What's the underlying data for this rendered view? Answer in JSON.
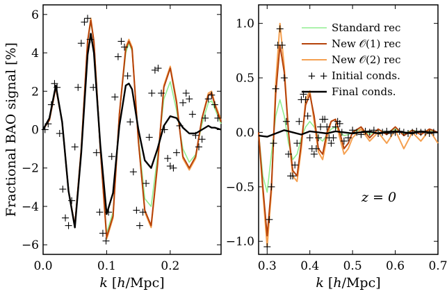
{
  "chart_data": [
    {
      "type": "line",
      "ylabel": "Fractional BAO signal [%]",
      "xlabel": "k [h/Mpc]",
      "xlim": [
        0.0,
        0.28
      ],
      "ylim": [
        -6.5,
        6.5
      ],
      "xticks": [
        0.0,
        0.1,
        0.2
      ],
      "xtick_labels": [
        "0.0",
        "0.1",
        "0.2"
      ],
      "yticks": [
        -6,
        -4,
        -2,
        0,
        2,
        4,
        6
      ],
      "ytick_labels": [
        "−6",
        "−4",
        "−2",
        "0",
        "2",
        "4",
        "6"
      ],
      "series": [
        {
          "key": "standard",
          "name": "Standard rec",
          "color": "#90ee90",
          "x": [
            0.0,
            0.01,
            0.02,
            0.03,
            0.04,
            0.05,
            0.06,
            0.07,
            0.075,
            0.08,
            0.09,
            0.1,
            0.11,
            0.12,
            0.13,
            0.135,
            0.14,
            0.15,
            0.16,
            0.17,
            0.18,
            0.19,
            0.2,
            0.21,
            0.22,
            0.23,
            0.24,
            0.25,
            0.26,
            0.265,
            0.27,
            0.28
          ],
          "y": [
            0.0,
            0.5,
            2.2,
            0.4,
            -3.2,
            -5.0,
            -1.0,
            4.6,
            5.6,
            4.6,
            -1.0,
            -5.4,
            -4.3,
            0.8,
            4.0,
            4.5,
            4.1,
            -0.4,
            -3.6,
            -4.0,
            -1.4,
            1.6,
            2.5,
            1.0,
            -1.0,
            -1.7,
            -1.3,
            0.3,
            1.4,
            1.5,
            1.1,
            0.3
          ]
        },
        {
          "key": "new1",
          "name": "New O(1) rec",
          "color": "#b5420a",
          "x": [
            0.0,
            0.01,
            0.02,
            0.03,
            0.04,
            0.05,
            0.06,
            0.07,
            0.075,
            0.08,
            0.09,
            0.1,
            0.11,
            0.12,
            0.13,
            0.135,
            0.14,
            0.15,
            0.16,
            0.17,
            0.18,
            0.19,
            0.2,
            0.21,
            0.22,
            0.23,
            0.24,
            0.25,
            0.26,
            0.265,
            0.27,
            0.28
          ],
          "y": [
            0.0,
            0.5,
            2.2,
            0.4,
            -3.2,
            -5.0,
            -1.0,
            4.6,
            5.7,
            4.6,
            -1.0,
            -5.6,
            -4.5,
            0.8,
            4.2,
            4.6,
            4.2,
            -0.6,
            -4.2,
            -5.0,
            -1.8,
            2.2,
            3.2,
            1.4,
            -1.4,
            -2.0,
            -1.4,
            0.6,
            1.8,
            1.9,
            1.3,
            0.4
          ]
        },
        {
          "key": "new2",
          "name": "New O(2) rec",
          "color": "#f5a050",
          "x": [
            0.0,
            0.01,
            0.02,
            0.03,
            0.04,
            0.05,
            0.06,
            0.07,
            0.075,
            0.08,
            0.09,
            0.1,
            0.11,
            0.12,
            0.13,
            0.135,
            0.14,
            0.15,
            0.16,
            0.17,
            0.18,
            0.19,
            0.2,
            0.21,
            0.22,
            0.23,
            0.24,
            0.25,
            0.26,
            0.265,
            0.27,
            0.28
          ],
          "y": [
            0.0,
            0.5,
            2.2,
            0.4,
            -3.2,
            -5.0,
            -1.0,
            4.6,
            5.8,
            4.6,
            -1.0,
            -5.7,
            -4.6,
            0.8,
            4.3,
            4.7,
            4.3,
            -0.6,
            -4.3,
            -5.1,
            -1.9,
            2.3,
            3.3,
            1.5,
            -1.5,
            -2.1,
            -1.5,
            0.6,
            1.9,
            2.0,
            1.4,
            0.5
          ]
        },
        {
          "key": "initial",
          "name": "Initial conds.",
          "color": "#000000",
          "marker": "+",
          "x": [
            0.003,
            0.008,
            0.013,
            0.018,
            0.022,
            0.026,
            0.031,
            0.035,
            0.04,
            0.045,
            0.05,
            0.055,
            0.06,
            0.065,
            0.07,
            0.074,
            0.079,
            0.084,
            0.089,
            0.094,
            0.099,
            0.103,
            0.108,
            0.113,
            0.118,
            0.123,
            0.128,
            0.133,
            0.137,
            0.142,
            0.147,
            0.152,
            0.157,
            0.162,
            0.167,
            0.171,
            0.176,
            0.181,
            0.186,
            0.191,
            0.196,
            0.2,
            0.205,
            0.21,
            0.215,
            0.22,
            0.225,
            0.23,
            0.235,
            0.24,
            0.245,
            0.25,
            0.255,
            0.26,
            0.265,
            0.27,
            0.275
          ],
          "y": [
            0.0,
            0.3,
            1.3,
            2.4,
            2.2,
            -0.2,
            -3.1,
            -4.6,
            -5.0,
            -3.7,
            -0.9,
            2.2,
            4.5,
            5.6,
            5.8,
            4.7,
            2.2,
            -1.2,
            -4.3,
            -5.4,
            -5.8,
            -4.3,
            -1.4,
            1.7,
            3.8,
            4.6,
            4.3,
            2.8,
            0.4,
            -2.2,
            -4.2,
            -5.0,
            -4.3,
            -2.8,
            -0.4,
            1.9,
            3.1,
            3.2,
            1.9,
            0.0,
            -1.5,
            -1.9,
            -2.0,
            -1.2,
            0.2,
            1.4,
            1.9,
            1.6,
            0.8,
            -0.3,
            -0.9,
            -0.5,
            0.6,
            1.6,
            1.8,
            1.3,
            0.6
          ]
        },
        {
          "key": "final",
          "name": "Final conds.",
          "color": "#000000",
          "x": [
            0.0,
            0.01,
            0.02,
            0.03,
            0.04,
            0.05,
            0.06,
            0.07,
            0.075,
            0.08,
            0.09,
            0.1,
            0.11,
            0.12,
            0.13,
            0.135,
            0.14,
            0.15,
            0.16,
            0.17,
            0.18,
            0.19,
            0.2,
            0.21,
            0.22,
            0.23,
            0.24,
            0.25,
            0.26,
            0.265,
            0.27,
            0.28
          ],
          "y": [
            0.0,
            0.6,
            2.3,
            0.4,
            -3.2,
            -5.1,
            -1.2,
            3.9,
            5.0,
            4.0,
            -0.8,
            -4.4,
            -3.3,
            0.2,
            2.3,
            2.4,
            2.1,
            0.0,
            -1.6,
            -2.0,
            -1.0,
            0.2,
            0.7,
            0.6,
            0.1,
            -0.2,
            -0.2,
            0.0,
            0.2,
            0.1,
            0.1,
            0.0
          ]
        }
      ]
    },
    {
      "type": "line",
      "xlabel": "k [h/Mpc]",
      "xlim": [
        0.28,
        0.7
      ],
      "ylim": [
        -1.12,
        1.17
      ],
      "xticks": [
        0.3,
        0.4,
        0.5,
        0.6,
        0.7
      ],
      "xtick_labels": [
        "0.3",
        "0.4",
        "0.5",
        "0.6",
        "0.7"
      ],
      "yticks": [
        -1.0,
        -0.5,
        0.0,
        0.5,
        1.0
      ],
      "ytick_labels": [
        "−1.0",
        "−0.5",
        "0.0",
        "0.5",
        "1.0"
      ],
      "annotation": "z = 0",
      "series": [
        {
          "key": "standard",
          "name": "Standard rec",
          "color": "#90ee90",
          "x": [
            0.28,
            0.29,
            0.3,
            0.31,
            0.32,
            0.33,
            0.34,
            0.35,
            0.36,
            0.37,
            0.38,
            0.39,
            0.4,
            0.41,
            0.42,
            0.43,
            0.44,
            0.45,
            0.46,
            0.47,
            0.48,
            0.49,
            0.5,
            0.52,
            0.54,
            0.56,
            0.58,
            0.6,
            0.62,
            0.64,
            0.66,
            0.68,
            0.7
          ],
          "y": [
            0.0,
            -0.4,
            -0.55,
            -0.2,
            0.15,
            0.3,
            0.15,
            -0.1,
            -0.25,
            -0.2,
            -0.05,
            0.05,
            0.1,
            0.05,
            -0.05,
            -0.08,
            -0.02,
            0.03,
            0.05,
            0.0,
            -0.03,
            -0.02,
            0.0,
            0.03,
            -0.02,
            0.02,
            0.0,
            0.03,
            -0.01,
            0.02,
            0.0,
            0.02,
            0.0
          ]
        },
        {
          "key": "new1",
          "name": "New O(1) rec",
          "color": "#b5420a",
          "x": [
            0.28,
            0.29,
            0.3,
            0.31,
            0.32,
            0.33,
            0.34,
            0.35,
            0.36,
            0.37,
            0.38,
            0.39,
            0.4,
            0.41,
            0.42,
            0.43,
            0.44,
            0.45,
            0.46,
            0.47,
            0.48,
            0.49,
            0.5,
            0.52,
            0.54,
            0.56,
            0.58,
            0.6,
            0.62,
            0.64,
            0.66,
            0.68,
            0.7
          ],
          "y": [
            0.0,
            -0.5,
            -0.95,
            -0.5,
            0.35,
            0.8,
            0.55,
            0.0,
            -0.35,
            -0.4,
            -0.1,
            0.25,
            0.35,
            0.15,
            -0.15,
            -0.2,
            0.0,
            0.1,
            0.12,
            0.0,
            -0.15,
            -0.1,
            0.0,
            0.05,
            -0.05,
            0.03,
            -0.02,
            0.05,
            -0.03,
            0.02,
            -0.02,
            0.03,
            0.0
          ]
        },
        {
          "key": "new2",
          "name": "New O(2) rec",
          "color": "#f5a050",
          "x": [
            0.28,
            0.29,
            0.3,
            0.31,
            0.32,
            0.33,
            0.34,
            0.35,
            0.36,
            0.37,
            0.38,
            0.39,
            0.4,
            0.41,
            0.42,
            0.43,
            0.44,
            0.45,
            0.46,
            0.47,
            0.48,
            0.49,
            0.5,
            0.52,
            0.54,
            0.56,
            0.58,
            0.6,
            0.62,
            0.64,
            0.66,
            0.68,
            0.7
          ],
          "y": [
            0.0,
            -0.55,
            -1.05,
            -0.55,
            0.45,
            1.0,
            0.6,
            0.0,
            -0.4,
            -0.45,
            -0.15,
            0.3,
            0.38,
            0.1,
            -0.18,
            -0.25,
            -0.05,
            0.1,
            0.12,
            -0.05,
            -0.2,
            -0.15,
            -0.05,
            0.03,
            -0.08,
            0.0,
            -0.1,
            0.02,
            -0.15,
            0.0,
            -0.08,
            0.02,
            -0.1
          ]
        },
        {
          "key": "initial",
          "name": "Initial conds.",
          "color": "#000000",
          "marker": "+",
          "x": [
            0.3,
            0.305,
            0.31,
            0.315,
            0.32,
            0.325,
            0.33,
            0.335,
            0.34,
            0.345,
            0.35,
            0.355,
            0.36,
            0.365,
            0.37,
            0.375,
            0.38,
            0.385,
            0.39,
            0.395,
            0.4,
            0.405,
            0.41,
            0.415,
            0.42,
            0.425,
            0.43,
            0.435,
            0.44,
            0.445,
            0.45,
            0.455,
            0.46,
            0.465,
            0.47,
            0.475,
            0.48,
            0.49,
            0.5,
            0.51,
            0.52,
            0.53,
            0.54,
            0.55,
            0.56,
            0.57,
            0.58,
            0.59,
            0.6,
            0.61,
            0.62,
            0.63,
            0.64,
            0.65,
            0.66,
            0.67,
            0.68,
            0.69
          ],
          "y": [
            -1.05,
            -0.8,
            -0.5,
            -0.1,
            0.4,
            0.8,
            0.95,
            0.8,
            0.5,
            0.1,
            -0.2,
            -0.4,
            -0.4,
            -0.3,
            -0.1,
            0.1,
            0.3,
            0.35,
            0.3,
            0.15,
            -0.05,
            -0.15,
            -0.2,
            -0.15,
            -0.05,
            0.05,
            0.12,
            0.12,
            0.05,
            -0.05,
            -0.1,
            -0.05,
            0.05,
            0.1,
            0.08,
            0.0,
            -0.08,
            -0.05,
            0.02,
            0.0,
            -0.02,
            0.01,
            0.0,
            0.02,
            -0.01,
            0.0,
            0.01,
            -0.01,
            0.0,
            0.01,
            0.0,
            -0.01,
            0.0,
            0.01,
            0.0,
            0.0,
            -0.01,
            0.0
          ]
        },
        {
          "key": "final",
          "name": "Final conds.",
          "color": "#000000",
          "x": [
            0.28,
            0.3,
            0.32,
            0.34,
            0.36,
            0.38,
            0.4,
            0.42,
            0.44,
            0.46,
            0.48,
            0.5,
            0.52,
            0.54,
            0.56,
            0.58,
            0.6,
            0.62,
            0.64,
            0.66,
            0.68,
            0.7
          ],
          "y": [
            -0.03,
            -0.04,
            -0.01,
            0.02,
            0.0,
            -0.02,
            0.01,
            0.0,
            -0.01,
            0.01,
            0.0,
            -0.01,
            0.0,
            0.01,
            -0.01,
            0.0,
            0.01,
            0.0,
            -0.01,
            0.01,
            0.0,
            0.0
          ]
        }
      ]
    }
  ],
  "legend": {
    "placement": "top-right of right panel",
    "entries": [
      {
        "key": "standard",
        "label": "Standard rec"
      },
      {
        "key": "new1",
        "label": "New 𝒪(1) rec"
      },
      {
        "key": "new2",
        "label": "New 𝒪(2) rec"
      },
      {
        "key": "initial",
        "label": "+ + Initial conds."
      },
      {
        "key": "final",
        "label": "Final conds."
      }
    ]
  }
}
